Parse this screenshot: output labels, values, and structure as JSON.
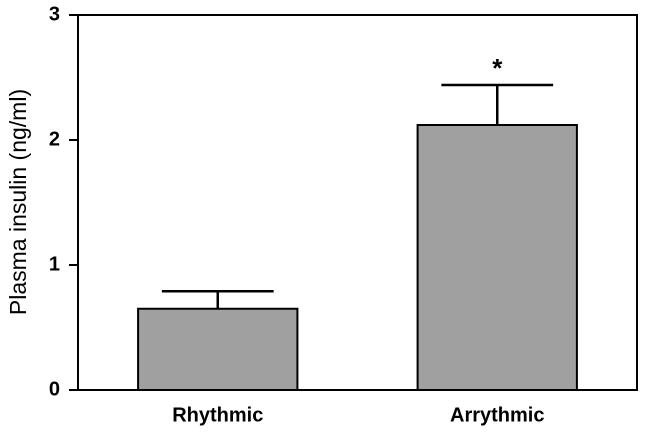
{
  "chart_data": {
    "type": "bar",
    "ylabel": "Plasma insulin (ng/ml)",
    "categories": [
      "Rhythmic",
      "Arrythmic"
    ],
    "values": [
      0.65,
      2.12
    ],
    "errors": [
      0.14,
      0.32
    ],
    "color": "#a0a0a0",
    "annotation": "*",
    "ylim": [
      0,
      3
    ],
    "yticks": [
      0,
      1,
      2,
      3
    ],
    "grid": false
  }
}
